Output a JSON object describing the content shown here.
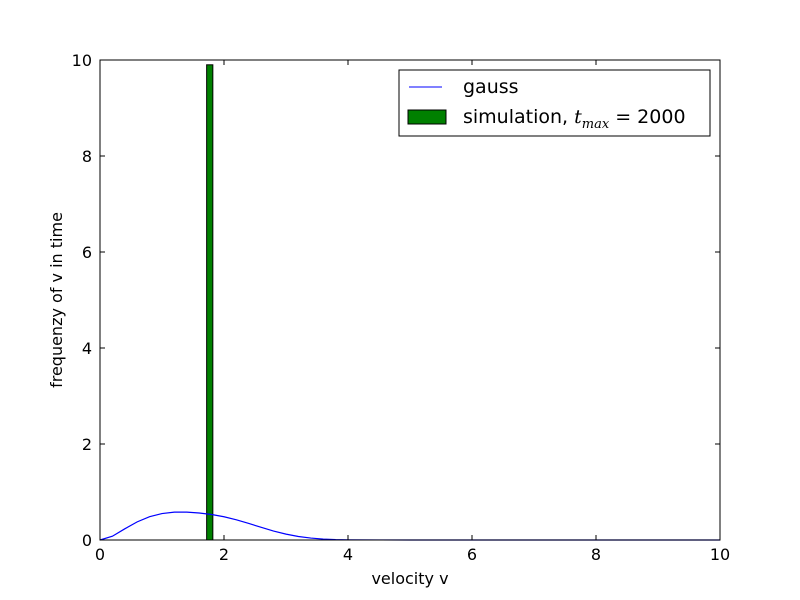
{
  "chart_data": {
    "type": "bar",
    "xlabel": "velocity v",
    "ylabel": "frequenzy of v in time",
    "xlim": [
      0,
      10
    ],
    "ylim": [
      0,
      10
    ],
    "xticks": [
      0,
      2,
      4,
      6,
      8,
      10
    ],
    "yticks": [
      0,
      2,
      4,
      6,
      8,
      10
    ],
    "grid": false,
    "legend_placement": "top-right",
    "series": [
      {
        "name": "gauss",
        "kind": "line",
        "color": "#0000ff",
        "x": [
          0,
          0.2,
          0.4,
          0.6,
          0.8,
          1.0,
          1.2,
          1.4,
          1.6,
          1.8,
          2.0,
          2.2,
          2.4,
          2.6,
          2.8,
          3.0,
          3.2,
          3.4,
          3.6,
          3.8,
          4.0,
          4.5,
          5,
          6,
          8,
          10
        ],
        "y": [
          0,
          0.079,
          0.233,
          0.378,
          0.486,
          0.551,
          0.58,
          0.581,
          0.563,
          0.531,
          0.484,
          0.421,
          0.345,
          0.264,
          0.187,
          0.122,
          0.073,
          0.04,
          0.02,
          0.009,
          0.004,
          0.001,
          0.0,
          0.0,
          0.0,
          0.0
        ]
      },
      {
        "name": "simulation, t_max = 2000",
        "label_prefix": "simulation, ",
        "label_math_base": "t",
        "label_math_sub": "max",
        "label_suffix": " = 2000",
        "kind": "bar",
        "color": "#008000",
        "bars": [
          {
            "x0": 1.72,
            "x1": 1.82,
            "value": 9.9
          }
        ]
      }
    ]
  }
}
